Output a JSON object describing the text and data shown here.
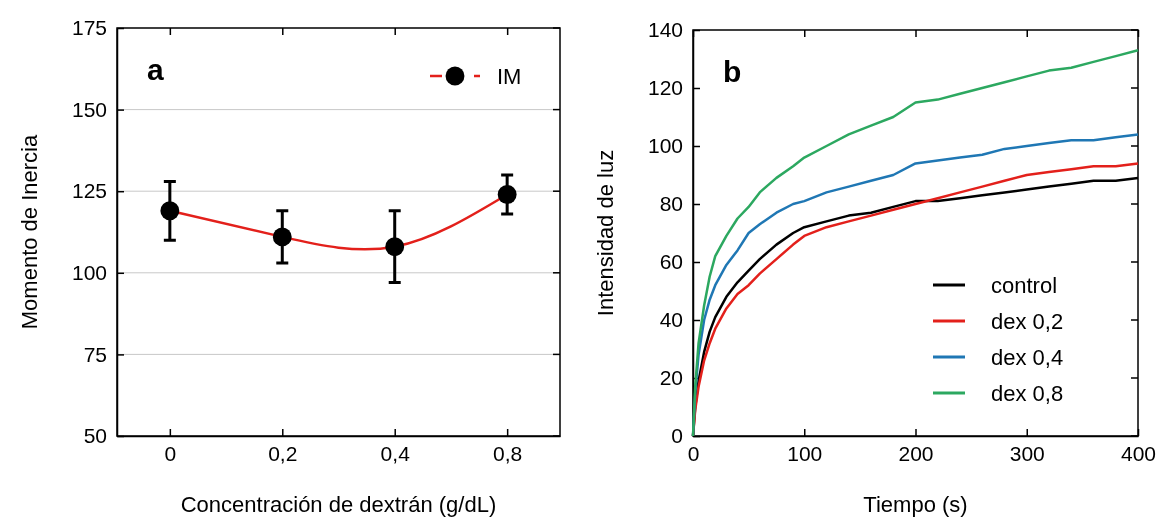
{
  "chart_data": [
    {
      "type": "line",
      "categories": [
        "0",
        "0,2",
        "0,4",
        "0,8"
      ],
      "xlabel": "Concentración de dextrán (g/dL)",
      "ylabel": "Momento de Inercia",
      "ylim": [
        50,
        175
      ],
      "yticks": [
        50,
        75,
        100,
        125,
        150,
        175
      ],
      "grid": "y",
      "legend": "top right",
      "marker": "circle",
      "line_style": "solid",
      "annotations": [
        "a"
      ],
      "series": [
        {
          "name": "IM",
          "color": "#e3201b",
          "values": [
            119,
            111,
            108,
            124
          ],
          "errors": [
            [
              110,
              128
            ],
            [
              103,
              119
            ],
            [
              97,
              119
            ],
            [
              118,
              130
            ]
          ]
        }
      ]
    },
    {
      "type": "line",
      "xlabel": "Tiempo (s)",
      "ylabel": "Intensidad de luz",
      "xlim": [
        0,
        400
      ],
      "xticks": [
        0,
        100,
        200,
        300,
        400
      ],
      "ylim": [
        0,
        140
      ],
      "yticks": [
        0,
        20,
        40,
        60,
        80,
        100,
        120,
        140
      ],
      "grid": false,
      "legend": "bottom right",
      "marker": "none",
      "annotations": [
        "b"
      ],
      "x": [
        0,
        2,
        5,
        10,
        15,
        20,
        30,
        40,
        50,
        60,
        75,
        90,
        100,
        120,
        140,
        160,
        180,
        200,
        220,
        240,
        260,
        280,
        300,
        320,
        340,
        360,
        380,
        400
      ],
      "series": [
        {
          "name": "control",
          "color": "#000000",
          "values": [
            0,
            10,
            19,
            29,
            36,
            41,
            48,
            53,
            57,
            61,
            66,
            70,
            72,
            74,
            76,
            77,
            79,
            81,
            81,
            82,
            83,
            84,
            85,
            86,
            87,
            88,
            88,
            89
          ]
        },
        {
          "name": "dex 0,2",
          "color": "#e3201b",
          "values": [
            0,
            9,
            17,
            26,
            32,
            37,
            44,
            49,
            52,
            56,
            61,
            66,
            69,
            72,
            74,
            76,
            78,
            80,
            82,
            84,
            86,
            88,
            90,
            91,
            92,
            93,
            93,
            94
          ]
        },
        {
          "name": "dex 0,4",
          "color": "#1f77b4",
          "values": [
            0,
            15,
            28,
            40,
            47,
            52,
            59,
            64,
            70,
            73,
            77,
            80,
            81,
            84,
            86,
            88,
            90,
            94,
            95,
            96,
            97,
            99,
            100,
            101,
            102,
            102,
            103,
            104
          ]
        },
        {
          "name": "dex 0,8",
          "color": "#2ca860",
          "values": [
            0,
            17,
            32,
            45,
            55,
            62,
            69,
            75,
            79,
            84,
            89,
            93,
            96,
            100,
            104,
            107,
            110,
            115,
            116,
            118,
            120,
            122,
            124,
            126,
            127,
            129,
            131,
            133
          ]
        }
      ]
    }
  ]
}
